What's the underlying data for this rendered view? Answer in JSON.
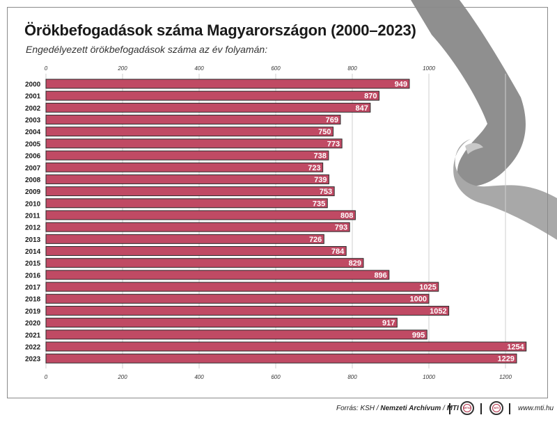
{
  "title": "Örökbefogadások száma Magyarországon (2000–2023)",
  "subtitle": "Engedélyezett örökbefogadások száma az év folyamán:",
  "colors": {
    "bar_fill": "#c04a64",
    "bar_stroke": "#2a2a2a",
    "label_text": "#ffffff",
    "grid": "#cfcfcf",
    "hand_shape": "#8f8f8f"
  },
  "illustration": "hands-holding-illustration",
  "chart_data": {
    "type": "bar",
    "orientation": "horizontal",
    "title": "Örökbefogadások száma Magyarországon (2000–2023)",
    "subtitle": "Engedélyezett örökbefogadások száma az év folyamán:",
    "xlim": [
      0,
      1200
    ],
    "ticks_top": [
      0,
      200,
      400,
      600,
      800,
      1000
    ],
    "ticks_bottom": [
      0,
      200,
      400,
      600,
      800,
      1000,
      1200
    ],
    "grid": true,
    "categories": [
      "2000",
      "2001",
      "2002",
      "2003",
      "2004",
      "2005",
      "2006",
      "2007",
      "2008",
      "2009",
      "2010",
      "2011",
      "2012",
      "2013",
      "2014",
      "2015",
      "2016",
      "2017",
      "2018",
      "2019",
      "2020",
      "2021",
      "2022",
      "2023"
    ],
    "values": [
      949,
      870,
      847,
      769,
      750,
      773,
      738,
      723,
      739,
      753,
      735,
      808,
      793,
      726,
      784,
      829,
      896,
      1025,
      1000,
      1052,
      917,
      995,
      1254,
      1229
    ]
  },
  "footer": {
    "source_prefix": "Forrás: KSH / ",
    "source_archive": "Nemzeti Archívum",
    "source_sep": " / ",
    "source_mti": "MTI",
    "logo1_text": "MTVA",
    "logo2_text": "MTI",
    "url": "www.mti.hu"
  }
}
